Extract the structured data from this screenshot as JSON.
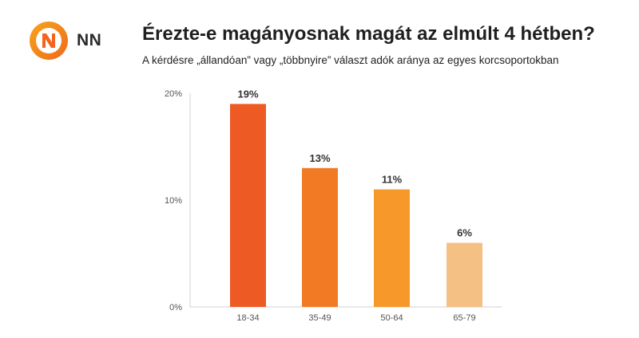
{
  "brand": {
    "name": "NN",
    "logo_icon": "nn-lion-logo-icon",
    "colors": {
      "orange": "#F3641E",
      "light_orange": "#F7A51D"
    }
  },
  "header": {
    "title": "Érezte-e magányosnak magát az elmúlt 4 hétben?",
    "subtitle": "A kérdésre „állandóan” vagy „többnyire” választ adók aránya az egyes korcsoportokban"
  },
  "chart_data": {
    "type": "bar",
    "title": "Érezte-e magányosnak magát az elmúlt 4 hétben?",
    "subtitle": "A kérdésre „állandóan” vagy „többnyire” választ adók aránya az egyes korcsoportokban",
    "categories": [
      "18-34",
      "35-49",
      "50-64",
      "65-79"
    ],
    "values": [
      19,
      13,
      11,
      6
    ],
    "data_labels": [
      "19%",
      "13%",
      "11%",
      "6%"
    ],
    "bar_colors": [
      "#EE5A24",
      "#F27A24",
      "#F6992A",
      "#F5C084"
    ],
    "ylim": [
      0,
      20
    ],
    "yticks": [
      0,
      10,
      20
    ],
    "ytick_labels": [
      "0%",
      "10%",
      "20%"
    ],
    "xlabel": "",
    "ylabel": "",
    "grid": false,
    "legend": "none"
  }
}
